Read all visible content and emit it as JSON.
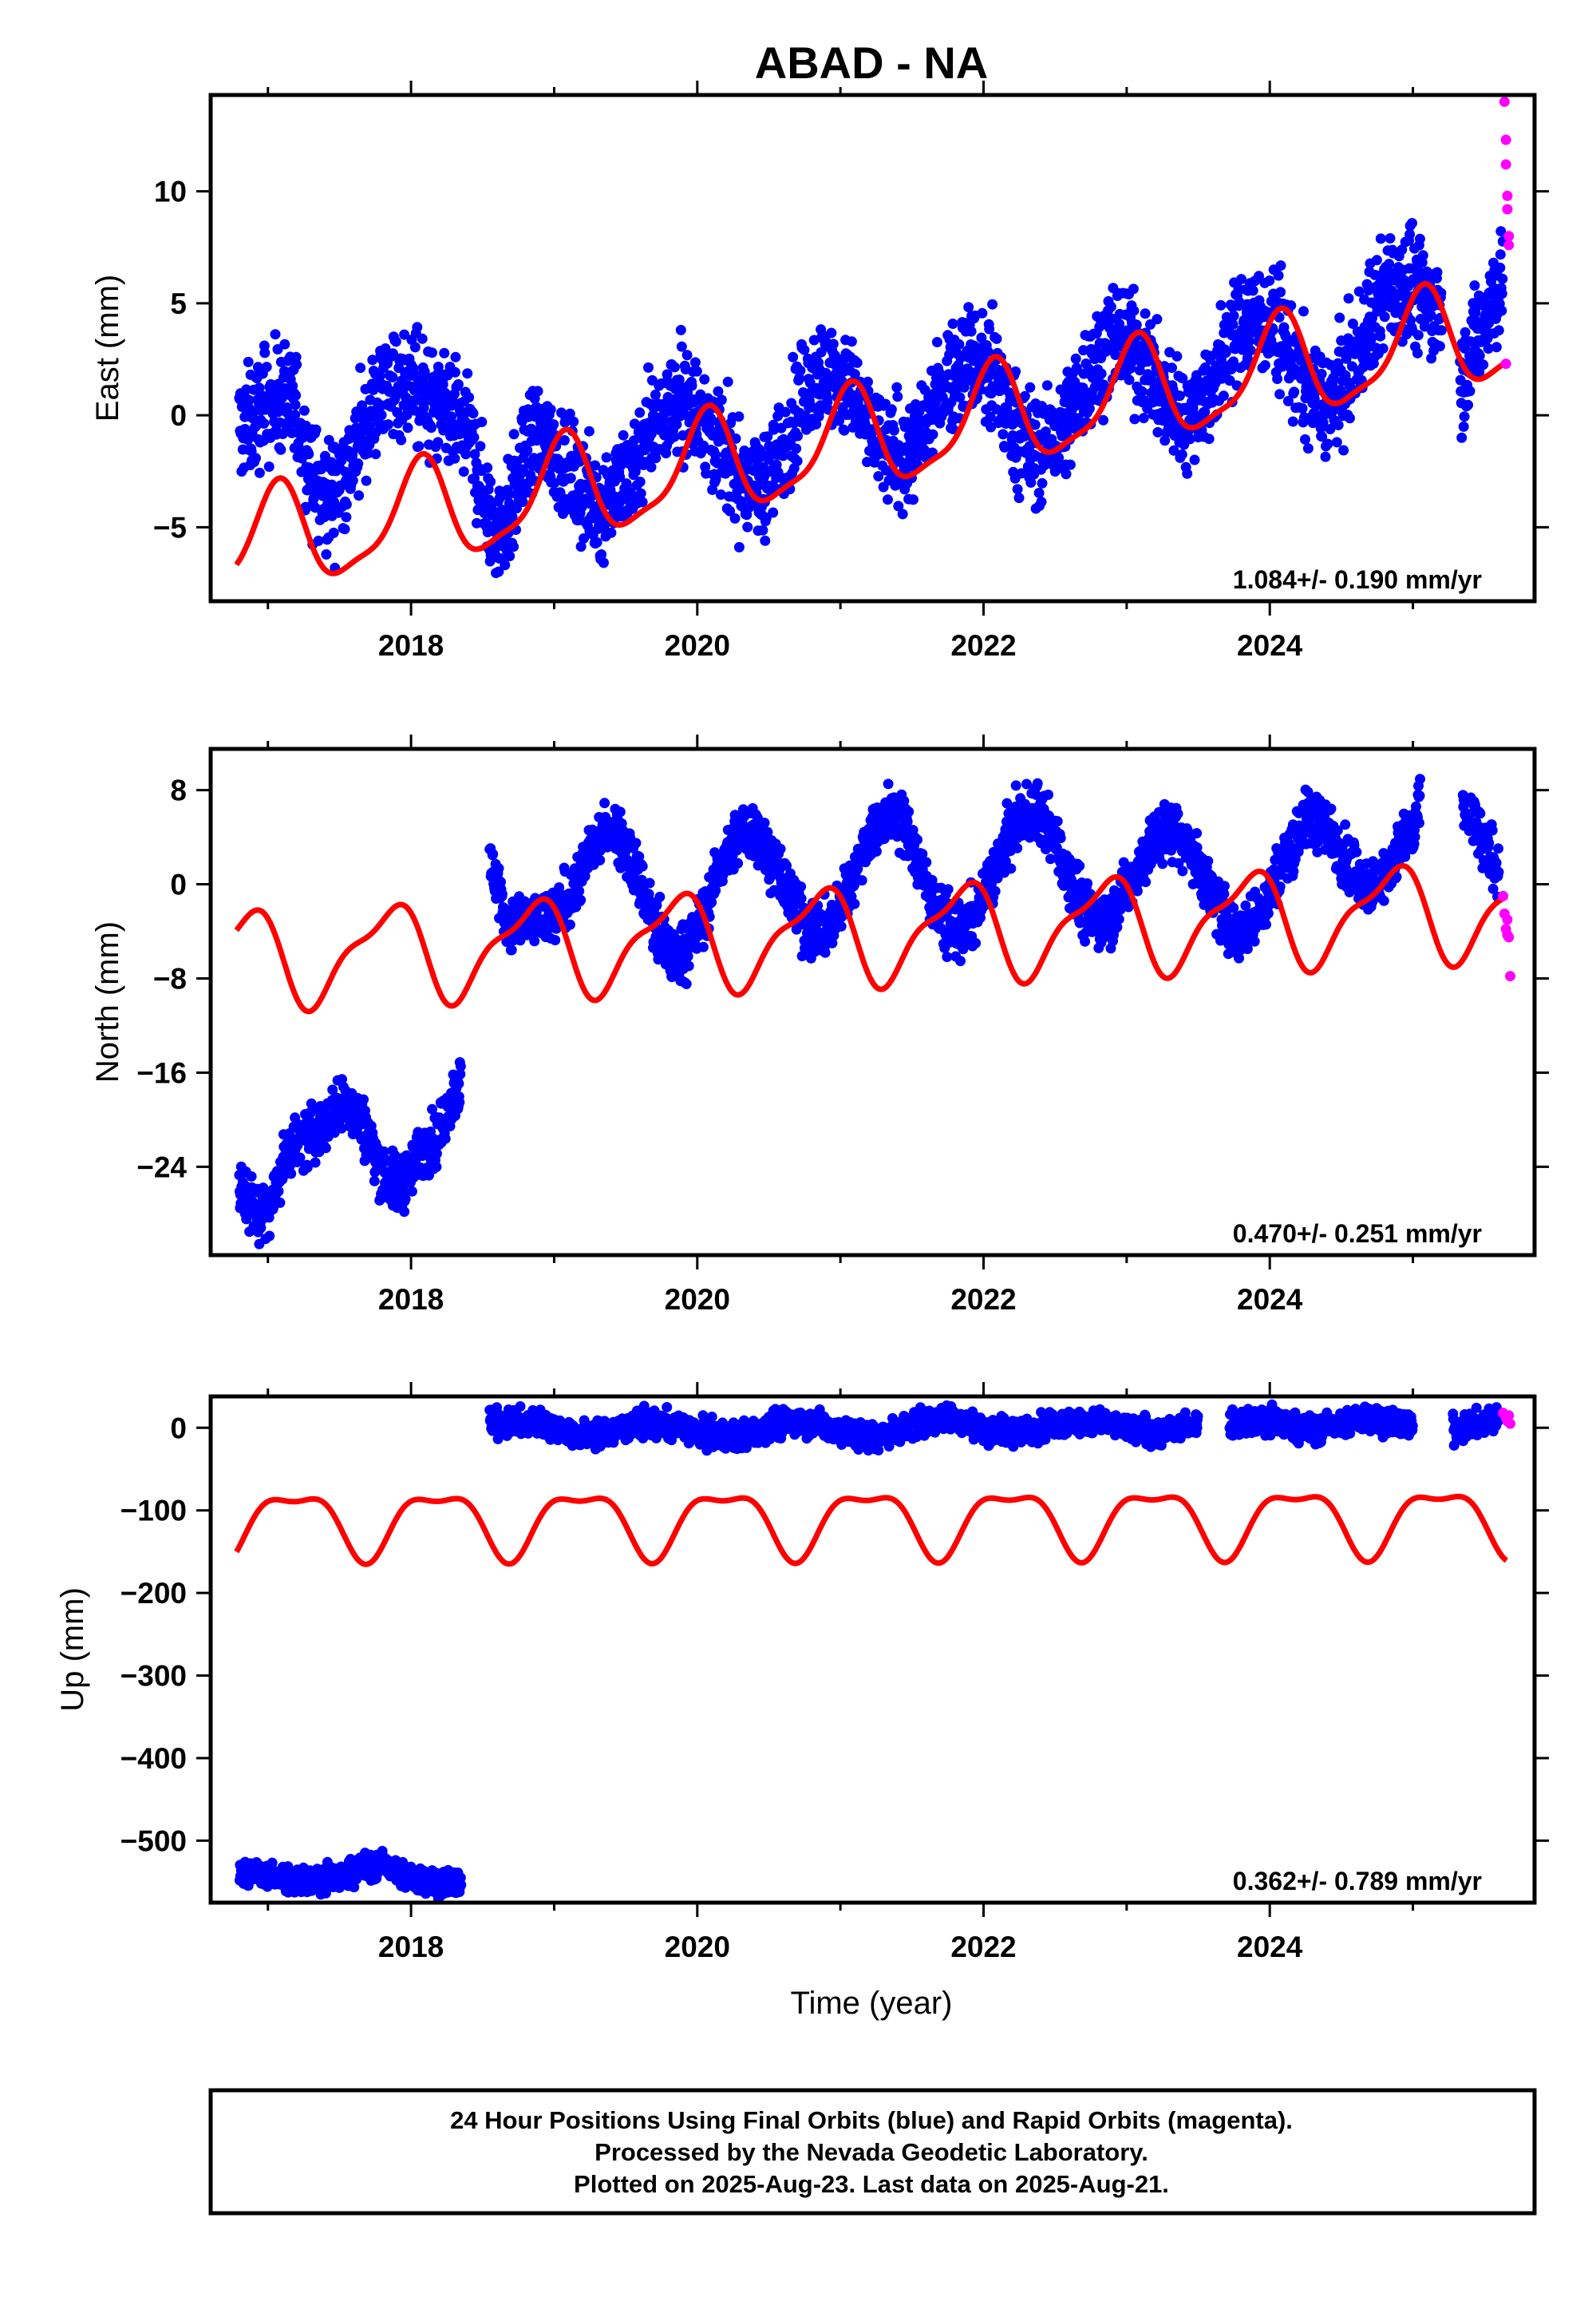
{
  "title": "ABAD - NA",
  "xlabel": "Time (year)",
  "footer": {
    "line1": "24 Hour Positions Using Final Orbits (blue) and Rapid Orbits (magenta).",
    "line2": "Processed by the Nevada Geodetic Laboratory.",
    "line3": "Plotted on 2025-Aug-23. Last data on 2025-Aug-21."
  },
  "colors": {
    "final": "#0000ff",
    "rapid": "#ff00ff",
    "model": "#ff0000"
  },
  "chart_data": [
    {
      "type": "scatter",
      "ylabel": "East (mm)",
      "rate": "1.084+/- 0.190 mm/yr",
      "xlim": [
        2016.6,
        2025.85
      ],
      "ylim": [
        -8.3,
        14.3
      ],
      "xticks": [
        2018,
        2020,
        2022,
        2024
      ],
      "yticks": [
        -5,
        0,
        5,
        10
      ],
      "ytick_labels": [
        "−5",
        "0",
        "5",
        "10"
      ],
      "blue_trend": [
        [
          2016.8,
          -0.5
        ],
        [
          2017.1,
          0.8
        ],
        [
          2017.4,
          -3.5
        ],
        [
          2017.9,
          1.5
        ],
        [
          2018.35,
          -0.5
        ],
        [
          2018.6,
          -5.0
        ],
        [
          2018.9,
          -1.0
        ],
        [
          2019.3,
          -4.0
        ],
        [
          2019.9,
          0.7
        ],
        [
          2020.4,
          -3.2
        ],
        [
          2020.9,
          2.0
        ],
        [
          2021.4,
          -1.9
        ],
        [
          2021.9,
          2.5
        ],
        [
          2022.4,
          -1.5
        ],
        [
          2022.95,
          3.5
        ],
        [
          2023.4,
          0.0
        ],
        [
          2023.9,
          4.5
        ],
        [
          2024.4,
          0.5
        ],
        [
          2024.9,
          6.0
        ],
        [
          2025.2,
          4.8
        ]
      ],
      "blue_spread": 1.2,
      "blue_gaps": [
        [
          2025.22,
          2025.33
        ]
      ],
      "blue_trend_tail": [
        [
          2025.33,
          2.0
        ],
        [
          2025.6,
          5.5
        ],
        [
          2025.63,
          6.5
        ]
      ],
      "rapid_points": [
        [
          2025.64,
          14.0
        ],
        [
          2025.65,
          12.3
        ],
        [
          2025.65,
          11.2
        ],
        [
          2025.66,
          9.8
        ],
        [
          2025.66,
          9.2
        ],
        [
          2025.67,
          8.0
        ],
        [
          2025.67,
          7.6
        ],
        [
          2025.65,
          2.3
        ]
      ],
      "model": {
        "offset": 0.0,
        "slope": 1.084,
        "t0": 2021.2,
        "annual_amp": 2.2,
        "annual_phase": 1.2,
        "semi_amp": 0.6,
        "semi_phase": 0.3,
        "base": -1.1,
        "steps": [
          [
            2018.55,
            0
          ]
        ]
      }
    },
    {
      "type": "scatter",
      "ylabel": "North (mm)",
      "rate": "0.470+/- 0.251 mm/yr",
      "xlim": [
        2016.6,
        2025.85
      ],
      "ylim": [
        -31.5,
        11.5
      ],
      "xticks": [
        2018,
        2020,
        2022,
        2024
      ],
      "yticks": [
        -24,
        -16,
        -8,
        0,
        8
      ],
      "ytick_labels": [
        "−24",
        "−16",
        "−8",
        "0",
        "8"
      ],
      "blue_trend": [
        [
          2016.8,
          -26.0
        ],
        [
          2016.95,
          -28.0
        ],
        [
          2017.2,
          -22.0
        ],
        [
          2017.55,
          -19.0
        ],
        [
          2017.9,
          -25.5
        ],
        [
          2018.15,
          -22.0
        ],
        [
          2018.35,
          -17.0
        ]
      ],
      "blue_trend2": [
        [
          2018.55,
          1.5
        ],
        [
          2018.7,
          -3.5
        ],
        [
          2018.95,
          -3.0
        ],
        [
          2019.4,
          4.5
        ],
        [
          2019.85,
          -6.0
        ],
        [
          2020.35,
          4.5
        ],
        [
          2020.85,
          -4.0
        ],
        [
          2021.35,
          6.0
        ],
        [
          2021.8,
          -4.0
        ],
        [
          2022.35,
          6.0
        ],
        [
          2022.8,
          -3.0
        ],
        [
          2023.3,
          4.5
        ],
        [
          2023.8,
          -4.0
        ],
        [
          2024.3,
          5.5
        ],
        [
          2024.7,
          0.0
        ],
        [
          2025.0,
          4.0
        ],
        [
          2025.05,
          7.0
        ]
      ],
      "blue_trend_tail": [
        [
          2025.35,
          6.0
        ],
        [
          2025.6,
          1.5
        ]
      ],
      "blue_spread": 1.2,
      "rapid_points": [
        [
          2025.63,
          -1.0
        ],
        [
          2025.64,
          -2.5
        ],
        [
          2025.65,
          -3.8
        ],
        [
          2025.66,
          -4.3
        ],
        [
          2025.67,
          -4.5
        ],
        [
          2025.68,
          -7.8
        ],
        [
          2025.66,
          -3.0
        ]
      ],
      "model": {
        "base": -4.2,
        "slope": 0.47,
        "t0": 2021.2,
        "annual_amp": 3.8,
        "annual_phase": 2.6,
        "semi_amp": 1.3,
        "semi_phase": 1.6,
        "offset": 0.0
      }
    },
    {
      "type": "scatter",
      "ylabel": "Up (mm)",
      "rate": "0.362+/- 0.789 mm/yr",
      "xlim": [
        2016.6,
        2025.85
      ],
      "ylim": [
        -575,
        38
      ],
      "xticks": [
        2018,
        2020,
        2022,
        2024
      ],
      "yticks": [
        -500,
        -400,
        -300,
        -200,
        -100,
        0
      ],
      "ytick_labels": [
        "−500",
        "−400",
        "−300",
        "−200",
        "−100",
        "0"
      ],
      "blue_trend": [
        [
          2016.8,
          -538
        ],
        [
          2017.1,
          -545
        ],
        [
          2017.35,
          -550
        ],
        [
          2017.75,
          -530
        ],
        [
          2018.1,
          -548
        ],
        [
          2018.35,
          -552
        ]
      ],
      "blue_trend2": [
        [
          2018.55,
          8
        ],
        [
          2018.9,
          5
        ],
        [
          2019.2,
          -8
        ],
        [
          2019.7,
          5
        ],
        [
          2020.2,
          -12
        ],
        [
          2020.7,
          8
        ],
        [
          2021.2,
          -10
        ],
        [
          2021.7,
          10
        ],
        [
          2022.2,
          -5
        ],
        [
          2022.7,
          8
        ],
        [
          2023.2,
          -6
        ],
        [
          2023.5,
          3
        ]
      ],
      "blue_gaps": [
        [
          2023.52,
          2023.72
        ]
      ],
      "blue_trend3": [
        [
          2023.72,
          8
        ],
        [
          2024.1,
          5
        ],
        [
          2024.3,
          -2
        ],
        [
          2024.7,
          12
        ],
        [
          2025.0,
          2
        ]
      ],
      "blue_trend_tail": [
        [
          2025.28,
          0
        ],
        [
          2025.6,
          8
        ]
      ],
      "blue_spread": 8,
      "rapid_points": [
        [
          2025.63,
          18
        ],
        [
          2025.65,
          12
        ],
        [
          2025.66,
          8
        ],
        [
          2025.67,
          15
        ],
        [
          2025.68,
          5
        ]
      ],
      "model": {
        "base": -112,
        "slope": 0.362,
        "t0": 2021.2,
        "annual_amp": 38,
        "annual_phase": 0.4,
        "semi_amp": 14,
        "semi_phase": 2.4,
        "offset": 0.0
      }
    }
  ]
}
